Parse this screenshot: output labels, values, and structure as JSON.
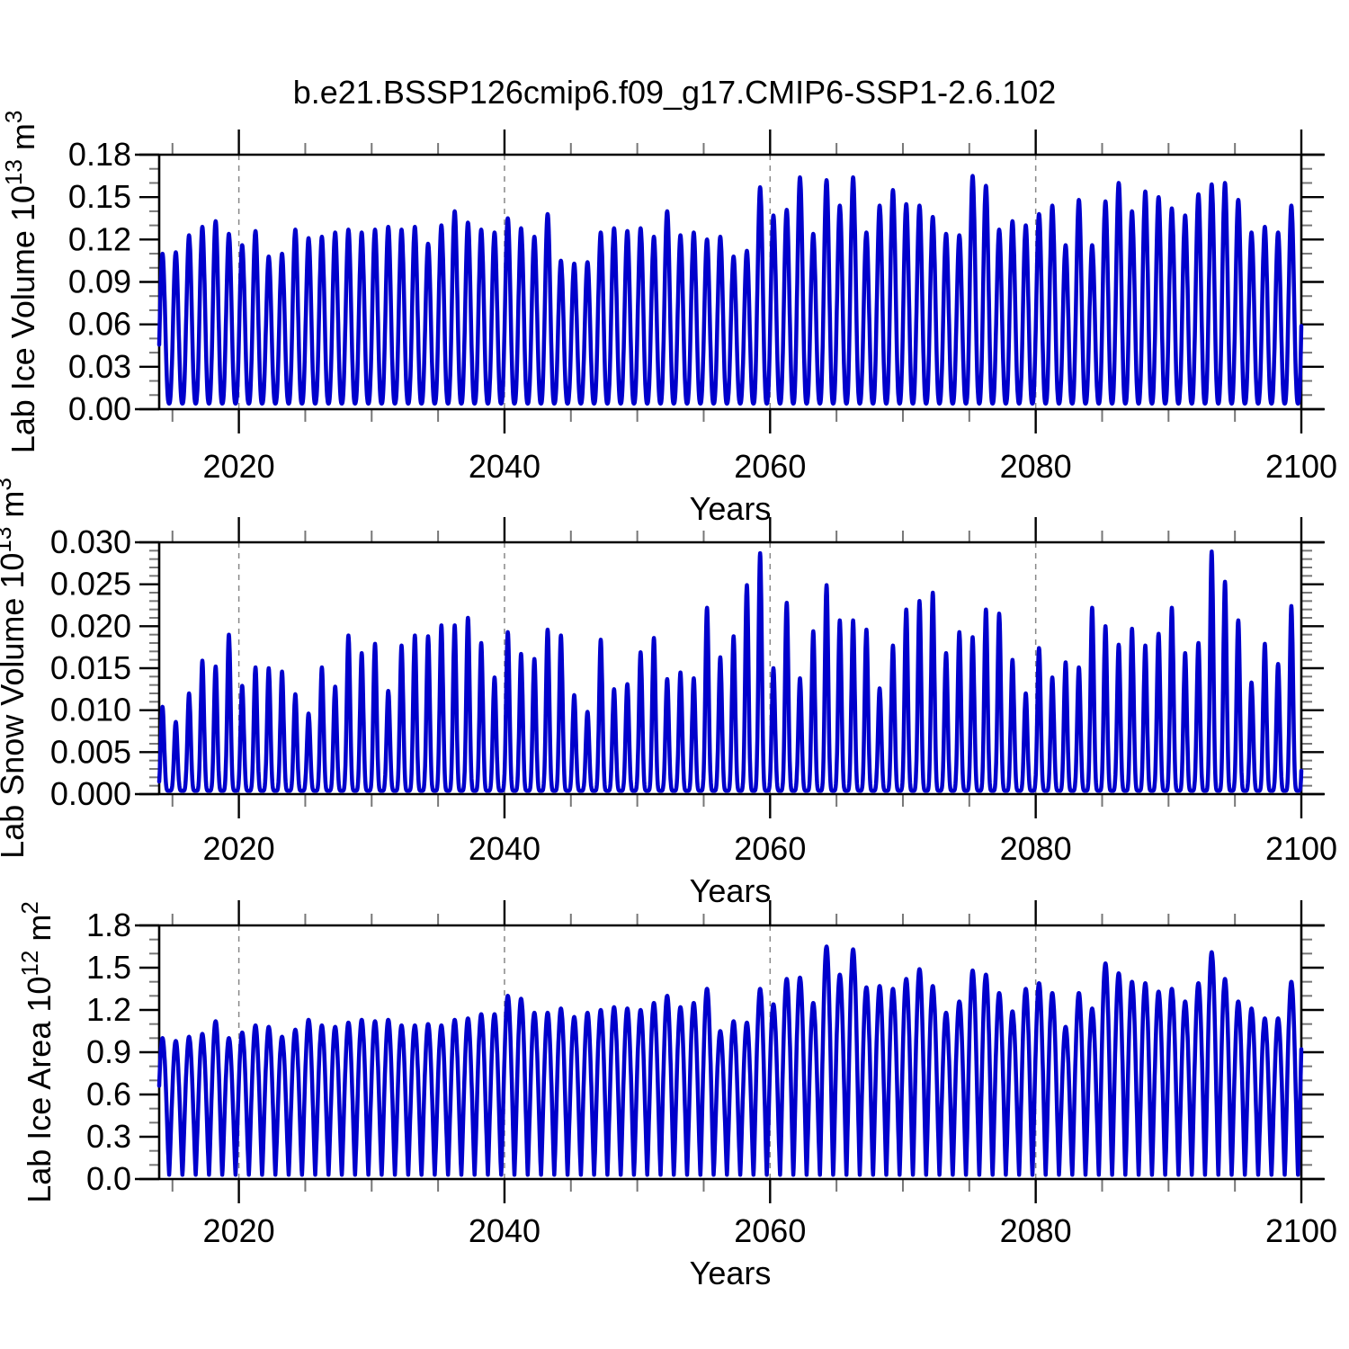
{
  "title": "b.e21.BSSP126cmip6.f09_g17.CMIP6-SSP1-2.6.102",
  "colors": {
    "line": "#0000CC",
    "frame": "#000000",
    "minor_tick": "#777777",
    "grid": "#888888",
    "text": "#000000"
  },
  "chart_data": [
    {
      "type": "line",
      "name": "lab-ice-volume",
      "ylabel": {
        "base": "Lab Ice Volume 10",
        "exp": "13",
        "unit": " m",
        "unit_exp": "3"
      },
      "xlabel": "Years",
      "x_range": [
        2014,
        2100
      ],
      "y_max": 0.18,
      "y_tick_values": [
        0.0,
        0.03,
        0.06,
        0.09,
        0.12,
        0.15,
        0.18
      ],
      "y_tick_labels": [
        "0.00",
        "0.03",
        "0.06",
        "0.09",
        "0.12",
        "0.15",
        "0.18"
      ],
      "y_minor_step": 0.01,
      "x_tick_values": [
        2020,
        2040,
        2060,
        2080,
        2100
      ],
      "x_tick_labels": [
        "2020",
        "2040",
        "2060",
        "2080",
        "2100"
      ],
      "x_minor_step": 5,
      "grid_years": [
        2020,
        2040,
        2060,
        2080
      ],
      "legend": "none",
      "grid": "vertical-dashed",
      "series": {
        "name": "lab-ice-volume-monthly",
        "start_year": 2014,
        "valley_min": 0.004,
        "peak_sharpness": 1.35,
        "peak_month_frac": 0.25,
        "annual_max": [
          0.11,
          0.111,
          0.123,
          0.129,
          0.133,
          0.124,
          0.116,
          0.126,
          0.108,
          0.11,
          0.127,
          0.121,
          0.122,
          0.125,
          0.127,
          0.125,
          0.127,
          0.129,
          0.127,
          0.129,
          0.117,
          0.13,
          0.14,
          0.132,
          0.127,
          0.125,
          0.135,
          0.128,
          0.122,
          0.138,
          0.105,
          0.103,
          0.104,
          0.125,
          0.128,
          0.126,
          0.128,
          0.122,
          0.14,
          0.123,
          0.125,
          0.12,
          0.122,
          0.108,
          0.112,
          0.157,
          0.137,
          0.141,
          0.164,
          0.124,
          0.162,
          0.144,
          0.164,
          0.125,
          0.144,
          0.155,
          0.145,
          0.144,
          0.136,
          0.124,
          0.123,
          0.165,
          0.158,
          0.127,
          0.133,
          0.13,
          0.138,
          0.144,
          0.116,
          0.148,
          0.116,
          0.147,
          0.16,
          0.14,
          0.154,
          0.15,
          0.142,
          0.137,
          0.152,
          0.159,
          0.16,
          0.148,
          0.125,
          0.129,
          0.125,
          0.144
        ]
      }
    },
    {
      "type": "line",
      "name": "lab-snow-volume",
      "ylabel": {
        "base": "Lab Snow Volume 10",
        "exp": "13",
        "unit": " m",
        "unit_exp": "3"
      },
      "xlabel": "Years",
      "x_range": [
        2014,
        2100
      ],
      "y_max": 0.03,
      "y_tick_values": [
        0.0,
        0.005,
        0.01,
        0.015,
        0.02,
        0.025,
        0.03
      ],
      "y_tick_labels": [
        "0.000",
        "0.005",
        "0.010",
        "0.015",
        "0.020",
        "0.025",
        "0.030"
      ],
      "y_minor_step": 0.001,
      "x_tick_values": [
        2020,
        2040,
        2060,
        2080,
        2100
      ],
      "x_tick_labels": [
        "2020",
        "2040",
        "2060",
        "2080",
        "2100"
      ],
      "x_minor_step": 5,
      "grid_years": [
        2020,
        2040,
        2060,
        2080
      ],
      "legend": "none",
      "grid": "vertical-dashed",
      "series": {
        "name": "lab-snow-volume-monthly",
        "start_year": 2014,
        "valley_min": 0.0004,
        "peak_sharpness": 3.2,
        "peak_month_frac": 0.25,
        "annual_max": [
          0.0104,
          0.0086,
          0.012,
          0.0159,
          0.0152,
          0.019,
          0.0129,
          0.0151,
          0.015,
          0.0146,
          0.0119,
          0.0096,
          0.0151,
          0.0128,
          0.0189,
          0.0168,
          0.0179,
          0.0123,
          0.0177,
          0.0189,
          0.0188,
          0.0201,
          0.0201,
          0.021,
          0.018,
          0.0139,
          0.0193,
          0.0167,
          0.0161,
          0.0196,
          0.0189,
          0.0118,
          0.0098,
          0.0184,
          0.0125,
          0.0131,
          0.0169,
          0.0186,
          0.0137,
          0.0145,
          0.0138,
          0.0222,
          0.0163,
          0.0188,
          0.0249,
          0.0287,
          0.015,
          0.0228,
          0.0138,
          0.0194,
          0.0249,
          0.0207,
          0.0207,
          0.0196,
          0.0126,
          0.0177,
          0.022,
          0.023,
          0.024,
          0.0168,
          0.0193,
          0.0187,
          0.022,
          0.0215,
          0.016,
          0.012,
          0.0174,
          0.0139,
          0.0157,
          0.0151,
          0.0222,
          0.02,
          0.0178,
          0.0197,
          0.0177,
          0.0191,
          0.0222,
          0.0168,
          0.018,
          0.0289,
          0.0253,
          0.0207,
          0.0133,
          0.0179,
          0.0155,
          0.0224
        ]
      }
    },
    {
      "type": "line",
      "name": "lab-ice-area",
      "ylabel": {
        "base": "Lab Ice Area 10",
        "exp": "12",
        "unit": " m",
        "unit_exp": "2"
      },
      "xlabel": "Years",
      "x_range": [
        2014,
        2100
      ],
      "y_max": 1.8,
      "y_tick_values": [
        0.0,
        0.3,
        0.6,
        0.9,
        1.2,
        1.5,
        1.8
      ],
      "y_tick_labels": [
        "0.0",
        "0.3",
        "0.6",
        "0.9",
        "1.2",
        "1.5",
        "1.8"
      ],
      "y_minor_step": 0.1,
      "x_tick_values": [
        2020,
        2040,
        2060,
        2080,
        2100
      ],
      "x_tick_labels": [
        "2020",
        "2040",
        "2060",
        "2080",
        "2100"
      ],
      "x_minor_step": 5,
      "grid_years": [
        2020,
        2040,
        2060,
        2080
      ],
      "legend": "none",
      "grid": "vertical-dashed",
      "series": {
        "name": "lab-ice-area-monthly",
        "start_year": 2014,
        "valley_min": 0.03,
        "peak_sharpness": 0.62,
        "peak_month_frac": 0.25,
        "annual_max": [
          1.0,
          0.98,
          1.01,
          1.03,
          1.12,
          1.0,
          1.04,
          1.09,
          1.08,
          1.01,
          1.06,
          1.13,
          1.09,
          1.08,
          1.11,
          1.13,
          1.12,
          1.13,
          1.09,
          1.09,
          1.1,
          1.09,
          1.13,
          1.14,
          1.17,
          1.17,
          1.3,
          1.28,
          1.18,
          1.18,
          1.21,
          1.15,
          1.18,
          1.2,
          1.22,
          1.21,
          1.2,
          1.25,
          1.3,
          1.22,
          1.25,
          1.35,
          1.05,
          1.12,
          1.11,
          1.35,
          1.24,
          1.42,
          1.43,
          1.25,
          1.65,
          1.45,
          1.63,
          1.36,
          1.37,
          1.35,
          1.42,
          1.49,
          1.37,
          1.18,
          1.26,
          1.48,
          1.45,
          1.32,
          1.19,
          1.35,
          1.39,
          1.32,
          1.08,
          1.32,
          1.21,
          1.53,
          1.46,
          1.4,
          1.39,
          1.33,
          1.35,
          1.26,
          1.39,
          1.61,
          1.42,
          1.26,
          1.21,
          1.14,
          1.14,
          1.4
        ]
      }
    }
  ]
}
